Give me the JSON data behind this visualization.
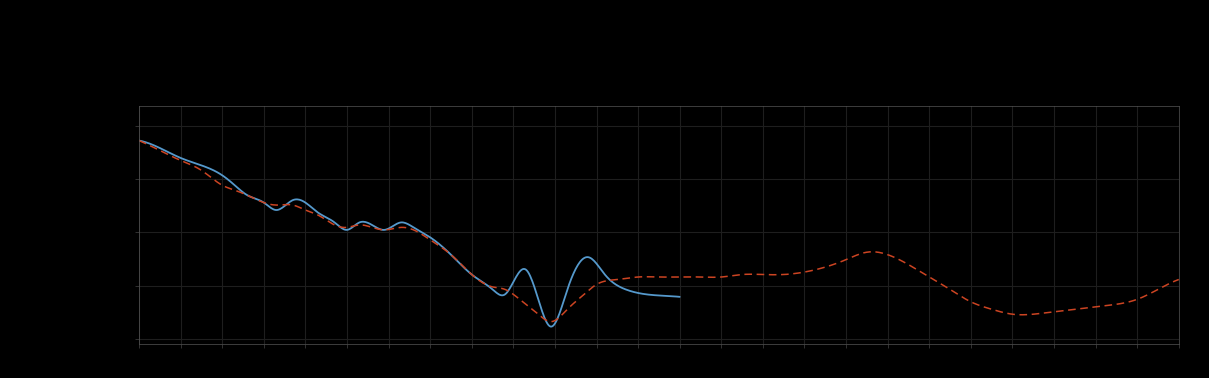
{
  "background_color": "#000000",
  "plot_bg_color": "#000000",
  "grid_color": "#1e1e1e",
  "blue_line_color": "#5599cc",
  "red_line_color": "#cc4422",
  "figsize": [
    12.09,
    3.78
  ],
  "dpi": 100,
  "legend_labels": [
    "",
    ""
  ]
}
